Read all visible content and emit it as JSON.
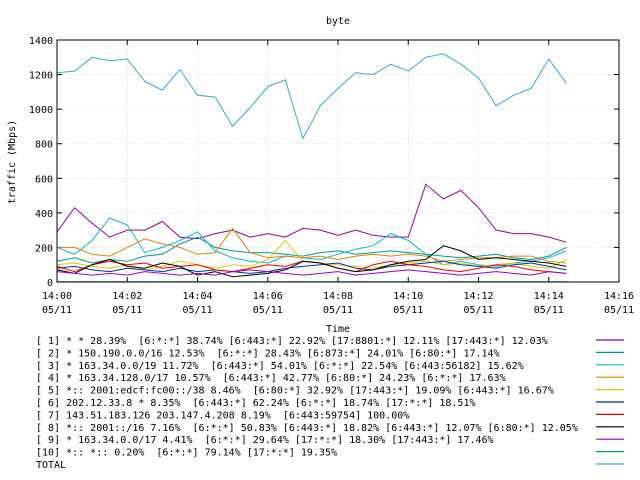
{
  "chart_data": {
    "type": "line",
    "title": "byte",
    "xlabel": "Time",
    "ylabel": "traffic (Mbps)",
    "ylim": [
      0,
      1400
    ],
    "yticks": [
      0,
      200,
      400,
      600,
      800,
      1000,
      1200,
      1400
    ],
    "xlim_minutes": [
      0,
      16
    ],
    "xticks": [
      {
        "label": "14:00",
        "date": "05/11",
        "minutes": 0
      },
      {
        "label": "14:02",
        "date": "05/11",
        "minutes": 2
      },
      {
        "label": "14:04",
        "date": "05/11",
        "minutes": 4
      },
      {
        "label": "14:06",
        "date": "05/11",
        "minutes": 6
      },
      {
        "label": "14:08",
        "date": "05/11",
        "minutes": 8
      },
      {
        "label": "14:10",
        "date": "05/11",
        "minutes": 10
      },
      {
        "label": "14:12",
        "date": "05/11",
        "minutes": 12
      },
      {
        "label": "14:14",
        "date": "05/11",
        "minutes": 14
      },
      {
        "label": "14:16",
        "date": "05/11",
        "minutes": 16
      }
    ],
    "x": [
      0,
      0.5,
      1,
      1.5,
      2,
      2.5,
      3,
      3.5,
      4,
      4.5,
      5,
      5.5,
      6,
      6.5,
      7,
      7.5,
      8,
      8.5,
      9,
      9.5,
      10,
      10.5,
      11,
      11.5,
      12,
      12.5,
      13,
      13.5,
      14,
      14.5
    ],
    "grid": true,
    "legend_position": "bottom",
    "series": [
      {
        "name": "[ 1] * * 28.39%  [6:*:*] 38.74% [6:443:*] 22.92% [17:8801:*] 12.11% [17:443:*] 12.03%",
        "color": "#990099",
        "values": [
          290,
          430,
          340,
          260,
          300,
          300,
          350,
          260,
          250,
          280,
          300,
          260,
          280,
          260,
          310,
          300,
          270,
          300,
          270,
          260,
          260,
          565,
          480,
          530,
          430,
          300,
          280,
          280,
          260,
          230
        ]
      },
      {
        "name": "[ 2] * 150.190.0.0/16 12.53%  [6:*:*] 28.43% [6:873:*] 24.01% [6:80:*] 17.14%",
        "color": "#009999",
        "values": [
          120,
          140,
          110,
          130,
          120,
          150,
          160,
          220,
          260,
          200,
          180,
          170,
          170,
          160,
          150,
          170,
          180,
          160,
          170,
          180,
          170,
          160,
          150,
          140,
          150,
          160,
          140,
          130,
          150,
          200
        ]
      },
      {
        "name": "[ 3] * 163.34.0.0/19 11.72%  [6:443:*] 54.01% [6:*:*] 22.54% [6:443:56182] 15.62%",
        "color": "#00bbdd",
        "values": [
          200,
          160,
          240,
          370,
          330,
          170,
          200,
          240,
          290,
          180,
          140,
          120,
          110,
          150,
          140,
          130,
          160,
          190,
          210,
          280,
          240,
          160,
          100,
          120,
          100,
          90,
          110,
          120,
          140,
          180
        ]
      },
      {
        "name": "[ 4] * 163.34.128.0/17 10.57%  [6:443:*] 42.77% [6:80:*] 24.23% [6:*:*] 17.63%",
        "color": "#dd8800",
        "values": [
          200,
          200,
          160,
          150,
          200,
          250,
          220,
          200,
          160,
          170,
          310,
          170,
          140,
          150,
          140,
          150,
          130,
          150,
          160,
          150,
          160,
          150,
          120,
          130,
          140,
          140,
          150,
          150,
          120,
          110
        ]
      },
      {
        "name": "[ 5] *:: 2001:edcf:fc00::/38 8.46%  [6:80:*] 32.92% [17:443:*] 19.09% [6:443:*] 16.67%",
        "color": "#ddcc00",
        "values": [
          100,
          110,
          90,
          80,
          100,
          70,
          90,
          120,
          100,
          80,
          100,
          90,
          130,
          240,
          120,
          110,
          100,
          90,
          80,
          100,
          110,
          120,
          100,
          110,
          90,
          100,
          110,
          90,
          80,
          130
        ]
      },
      {
        "name": "[ 6] 202.12.33.8 * 8.35%  [6:443:*] 62.24% [6:*:*] 18.74% [17:*:*] 18.51%",
        "color": "#003399",
        "values": [
          80,
          90,
          70,
          60,
          80,
          70,
          60,
          80,
          60,
          70,
          60,
          50,
          60,
          80,
          90,
          100,
          110,
          80,
          70,
          90,
          100,
          110,
          120,
          100,
          90,
          80,
          100,
          110,
          90,
          70
        ]
      },
      {
        "name": "[ 7] 143.51.183.126 203.147.4.208 8.19%  [6:443:59754] 100.00%",
        "color": "#ee0000",
        "values": [
          90,
          60,
          100,
          120,
          100,
          110,
          80,
          90,
          100,
          70,
          60,
          80,
          100,
          90,
          120,
          110,
          80,
          60,
          100,
          120,
          100,
          90,
          70,
          60,
          80,
          100,
          90,
          70,
          60,
          50
        ]
      },
      {
        "name": "[ 8] *:: 2001::/16 7.16%  [6:*:*] 50.83% [6:443:*] 18.82% [6:443:*] 12.07% [6:80:*] 12.05%",
        "color": "#000000",
        "values": [
          70,
          50,
          100,
          130,
          90,
          80,
          110,
          90,
          40,
          60,
          30,
          40,
          50,
          70,
          120,
          110,
          80,
          60,
          70,
          100,
          120,
          130,
          210,
          180,
          130,
          140,
          130,
          120,
          110,
          90
        ]
      },
      {
        "name": "[ 9] * 163.34.0.0/17 4.41%  [6:*:*] 29.64% [17:*:*] 18.30% [17:443:*] 17.46%",
        "color": "#9900cc",
        "values": [
          60,
          50,
          40,
          50,
          40,
          60,
          50,
          40,
          50,
          40,
          60,
          70,
          60,
          50,
          40,
          50,
          60,
          40,
          50,
          60,
          70,
          60,
          50,
          40,
          50,
          60,
          50,
          40,
          60,
          50
        ]
      },
      {
        "name": "[10] *:: *:: 0.20%  [6:*:*] 79.14% [17:*:*] 19.35%",
        "color": "#00aa66",
        "values": [
          2,
          2,
          2,
          2,
          2,
          2,
          2,
          2,
          2,
          2,
          2,
          2,
          2,
          2,
          2,
          2,
          2,
          2,
          2,
          2,
          2,
          2,
          2,
          2,
          2,
          2,
          2,
          2,
          2,
          2
        ]
      },
      {
        "name": "TOTAL",
        "color": "#33aacc",
        "values": [
          1210,
          1220,
          1300,
          1280,
          1290,
          1160,
          1110,
          1230,
          1080,
          1070,
          900,
          1010,
          1130,
          1170,
          830,
          1020,
          1120,
          1210,
          1200,
          1260,
          1220,
          1300,
          1320,
          1260,
          1180,
          1020,
          1080,
          1120,
          1290,
          1150
        ]
      }
    ]
  }
}
